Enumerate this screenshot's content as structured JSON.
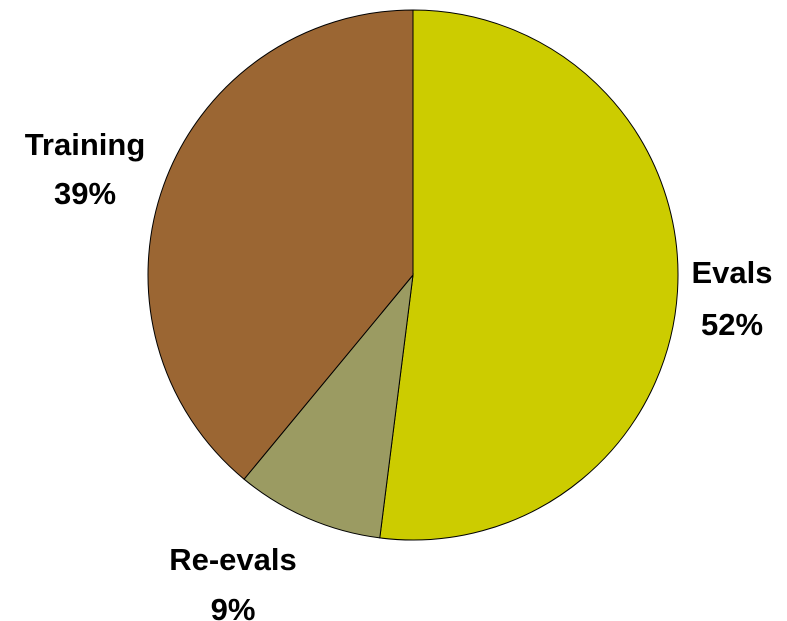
{
  "chart_data": {
    "type": "pie",
    "title": "",
    "slices": [
      {
        "label": "Evals",
        "value": 52,
        "value_label": "52%",
        "color": "#cccc00"
      },
      {
        "label": "Re-evals",
        "value": 9,
        "value_label": "9%",
        "color": "#9b9b62"
      },
      {
        "label": "Training",
        "value": 39,
        "value_label": "39%",
        "color": "#9b6633"
      }
    ],
    "start_angle_deg": 0,
    "direction": "clockwise",
    "labels_outside": true
  }
}
